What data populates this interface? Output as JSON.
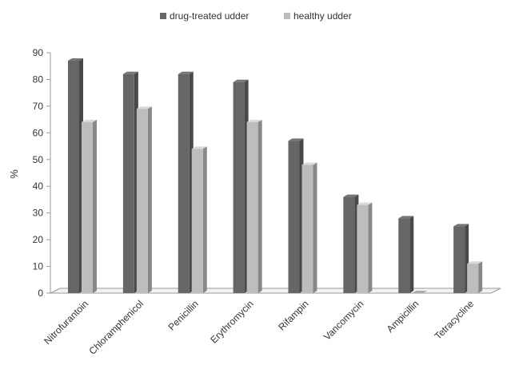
{
  "chart_data": {
    "type": "bar",
    "title": "",
    "xlabel": "",
    "ylabel": "%",
    "ylim": [
      0,
      90
    ],
    "yticks": [
      0,
      10,
      20,
      30,
      40,
      50,
      60,
      70,
      80,
      90
    ],
    "grid": false,
    "legend_position": "top-center",
    "three_d": true,
    "categories": [
      "Nitrofurantoin",
      "Chloramphenicol",
      "Penicillin",
      "Erythromycin",
      "Rifampin",
      "Vancomycin",
      "Ampicillin",
      "Tetracycline"
    ],
    "series": [
      {
        "name": "drug-treated udder",
        "color": "#666666",
        "values": [
          87,
          82,
          82,
          79,
          57,
          36,
          28,
          25
        ]
      },
      {
        "name": "healthy udder",
        "color": "#bdbdbd",
        "values": [
          64,
          69,
          54,
          64,
          48,
          33,
          0,
          11
        ]
      }
    ]
  }
}
